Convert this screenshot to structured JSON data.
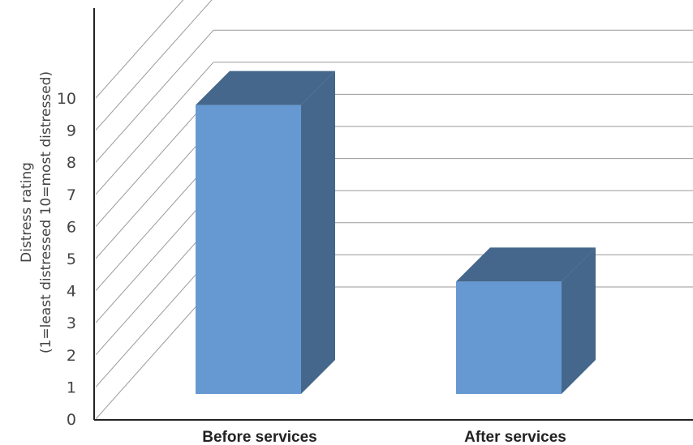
{
  "chart_data": {
    "type": "bar",
    "style": "3d-column",
    "categories": [
      "Before services",
      "After services"
    ],
    "values": [
      9,
      3.5
    ],
    "ylabel_line1": "Distress rating",
    "ylabel_line2": "(1=least distressed 10=most distressed)",
    "yticks": [
      "0",
      "1",
      "2",
      "3",
      "4",
      "5",
      "6",
      "7",
      "8",
      "9",
      "10"
    ],
    "ylim": [
      0,
      10
    ],
    "grid": true,
    "legend": "none",
    "colors": {
      "front": "#6699d2",
      "side": "#44678b",
      "top": "#44678b"
    }
  }
}
